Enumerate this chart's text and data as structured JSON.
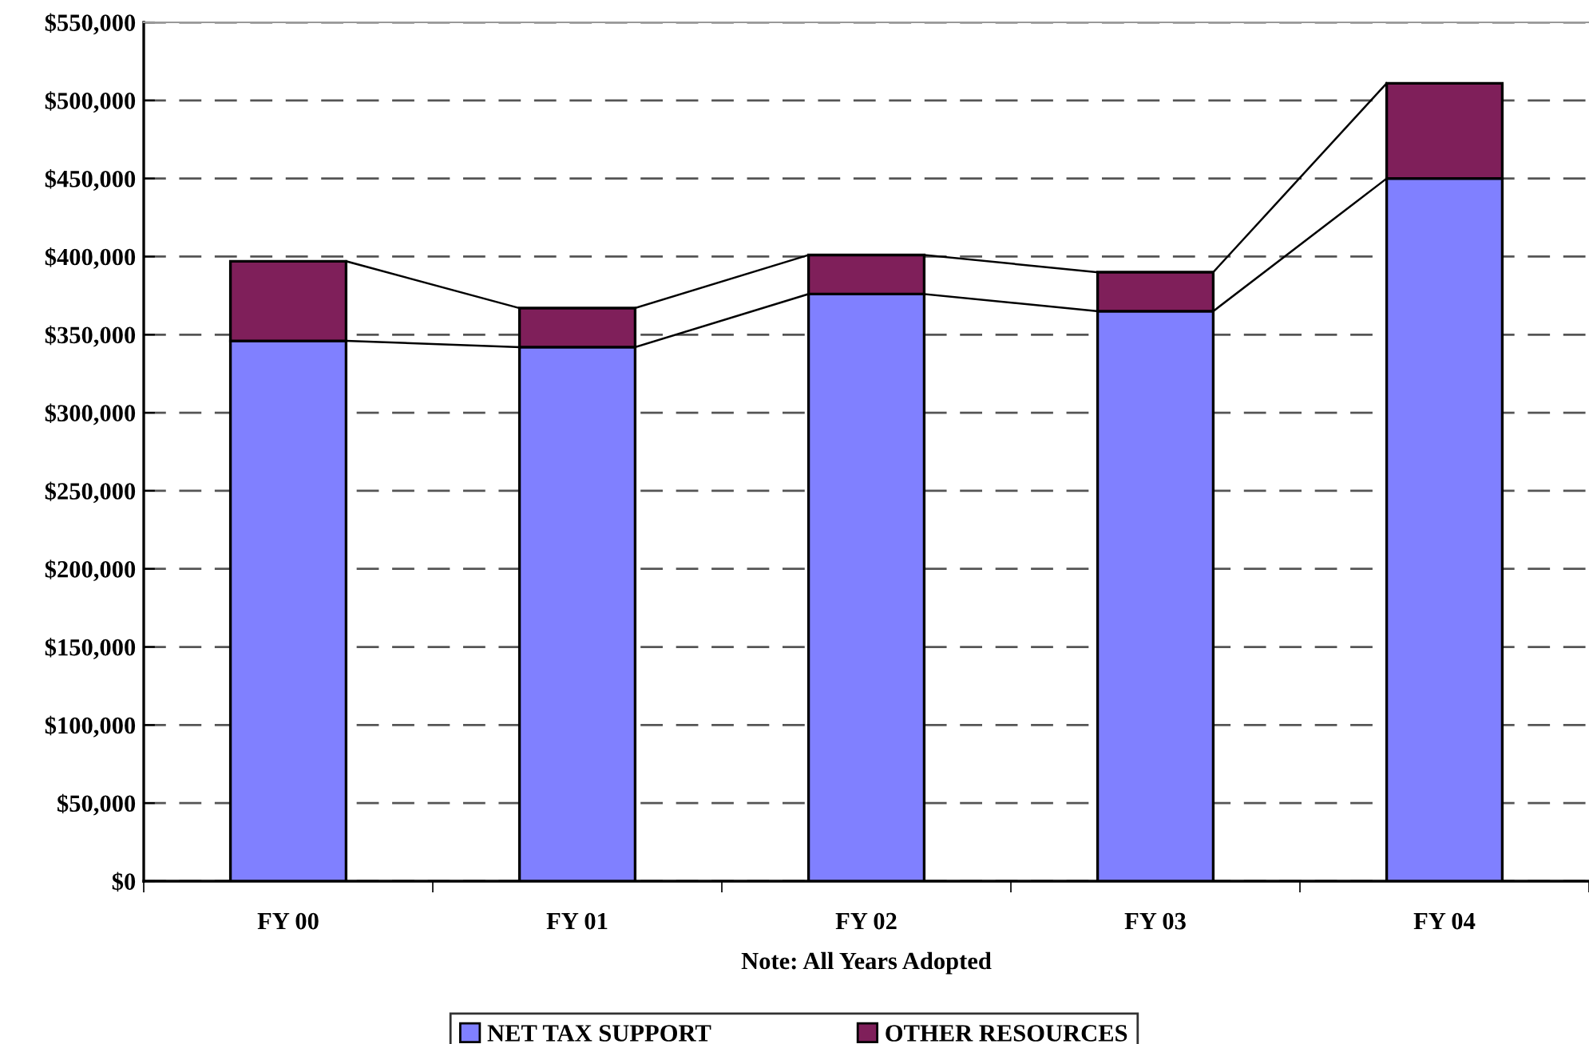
{
  "chart_data": {
    "type": "bar",
    "stacked": true,
    "xlabel": "Note: All Years Adopted",
    "categories": [
      "FY 00",
      "FY 01",
      "FY 02",
      "FY 03",
      "FY 04"
    ],
    "series": [
      {
        "name": "NET TAX SUPPORT",
        "color": "#8080ff",
        "values": [
          346000,
          342000,
          376000,
          365000,
          450000
        ]
      },
      {
        "name": "OTHER RESOURCES",
        "color": "#7f1f5a",
        "values": [
          51000,
          25000,
          25000,
          25000,
          61000
        ]
      }
    ],
    "ylim": [
      0,
      550000
    ],
    "yticks": [
      {
        "value": 0,
        "label": "$0"
      },
      {
        "value": 50000,
        "label": "$50,000"
      },
      {
        "value": 100000,
        "label": "$100,000"
      },
      {
        "value": 150000,
        "label": "$150,000"
      },
      {
        "value": 200000,
        "label": "$200,000"
      },
      {
        "value": 250000,
        "label": "$250,000"
      },
      {
        "value": 300000,
        "label": "$300,000"
      },
      {
        "value": 350000,
        "label": "$350,000"
      },
      {
        "value": 400000,
        "label": "$400,000"
      },
      {
        "value": 450000,
        "label": "$450,000"
      },
      {
        "value": 500000,
        "label": "$500,000"
      },
      {
        "value": 550000,
        "label": "$550,000"
      }
    ],
    "grid": "y",
    "legend": "bottom"
  }
}
